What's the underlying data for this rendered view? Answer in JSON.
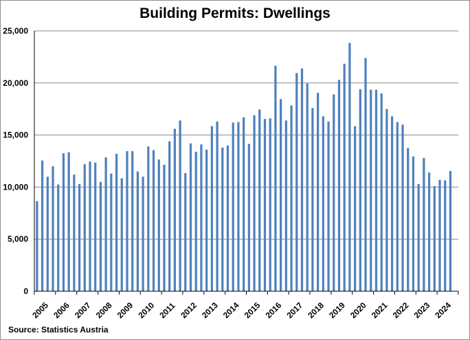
{
  "chart_data": {
    "type": "bar",
    "title": "Building Permits: Dwellings",
    "source": "Source: Statistics Austria",
    "xlabel": "",
    "ylabel": "",
    "ylim": [
      0,
      25000
    ],
    "yticks": [
      "0",
      "5,000",
      "10,000",
      "15,000",
      "20,000",
      "25,000"
    ],
    "ytick_values": [
      0,
      5000,
      10000,
      15000,
      20000,
      25000
    ],
    "grid": true,
    "bar_color": "#4f81bd",
    "x_labels": [
      "2005",
      "2006",
      "2007",
      "2008",
      "2009",
      "2010",
      "2011",
      "2012",
      "2013",
      "2014",
      "2015",
      "2016",
      "2017",
      "2018",
      "2019",
      "2020",
      "2021",
      "2022",
      "2023",
      "2024"
    ],
    "periods_per_year": 4,
    "values": [
      8650,
      12550,
      11000,
      12000,
      10250,
      13250,
      13350,
      11200,
      10300,
      12200,
      12450,
      12350,
      10500,
      12850,
      11300,
      13200,
      10850,
      13450,
      13450,
      11500,
      11000,
      13900,
      13550,
      12650,
      12150,
      14400,
      15600,
      16400,
      11350,
      14200,
      13400,
      14100,
      13600,
      15850,
      16300,
      13800,
      14000,
      16200,
      16250,
      16700,
      14150,
      16900,
      17450,
      16550,
      16600,
      21650,
      18450,
      16400,
      17850,
      20950,
      21400,
      19950,
      17600,
      19050,
      16800,
      16300,
      18900,
      20300,
      21850,
      23850,
      15850,
      19400,
      22400,
      19350,
      19350,
      19000,
      17500,
      16800,
      16250,
      16000,
      13750,
      12950,
      10300,
      12800,
      11400,
      10100,
      10700,
      10650,
      11550
    ]
  }
}
